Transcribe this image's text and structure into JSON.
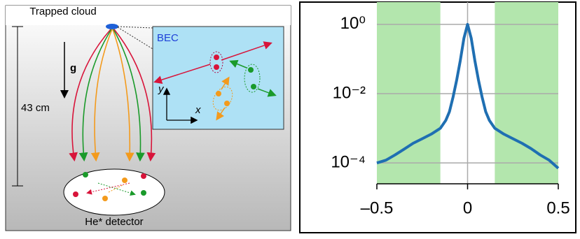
{
  "diagram": {
    "source_label": "Trapped cloud",
    "gravity_label": "g",
    "height_label": "43 cm",
    "inset_label": "BEC",
    "axis_y_label": "y",
    "axis_x_label": "x",
    "detector_label": "He* detector"
  },
  "chart_data": {
    "type": "line",
    "log_y": true,
    "grid": true,
    "x": [
      -0.5,
      -0.45,
      -0.4,
      -0.35,
      -0.3,
      -0.25,
      -0.2,
      -0.15,
      -0.12,
      -0.1,
      -0.08,
      -0.06,
      -0.04,
      -0.02,
      0,
      0.02,
      0.04,
      0.06,
      0.08,
      0.1,
      0.12,
      0.15,
      0.2,
      0.25,
      0.3,
      0.35,
      0.4,
      0.45,
      0.5
    ],
    "series": [
      {
        "color": "#1f6fb2",
        "values": [
          0.0001,
          0.00012,
          0.00017,
          0.00025,
          0.00037,
          0.0005,
          0.00068,
          0.001,
          0.0017,
          0.003,
          0.008,
          0.025,
          0.09,
          0.4,
          1,
          0.4,
          0.09,
          0.025,
          0.008,
          0.003,
          0.0017,
          0.001,
          0.00068,
          0.0005,
          0.00037,
          0.00026,
          0.00017,
          0.00012,
          7e-05
        ]
      }
    ],
    "shaded_regions": [
      [
        -0.5,
        -0.15
      ],
      [
        0.15,
        0.5
      ]
    ],
    "shade_color": "#b3e6ad",
    "xlim": [
      -0.5,
      0.5
    ],
    "ylim": [
      2.5e-05,
      4.4
    ],
    "xticks": [
      {
        "value": -0.5,
        "label": "–0.5"
      },
      0,
      0.5
    ],
    "yticks": [
      {
        "value": 0.0001,
        "label": "10⁻⁴"
      },
      {
        "value": 0.01,
        "label": "10⁻²"
      },
      {
        "value": 1,
        "label": "10⁰"
      }
    ]
  }
}
